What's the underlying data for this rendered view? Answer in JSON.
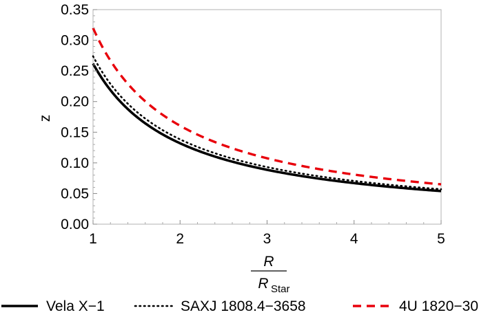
{
  "chart_data": {
    "type": "line",
    "xlabel": {
      "numerator": "R",
      "denominator_main": "R",
      "denominator_sub": "Star"
    },
    "ylabel": "z",
    "xlim": [
      1,
      5
    ],
    "ylim": [
      0,
      0.35
    ],
    "xticks": [
      "1",
      "2",
      "3",
      "4",
      "5"
    ],
    "yticks": [
      "0.00",
      "0.05",
      "0.10",
      "0.15",
      "0.20",
      "0.25",
      "0.30",
      "0.35"
    ],
    "grid": false,
    "legend_position": "bottom",
    "series": [
      {
        "name": "Vela X−1",
        "style": "solid",
        "color": "#000000",
        "x": [
          1.0,
          1.5,
          2.0,
          2.5,
          3.0,
          3.5,
          4.0,
          4.5,
          5.0
        ],
        "y": [
          0.262,
          0.172,
          0.128,
          0.101,
          0.085,
          0.073,
          0.065,
          0.059,
          0.054
        ]
      },
      {
        "name": "SAXJ 1808.4−3658",
        "style": "dotted",
        "color": "#000000",
        "x": [
          1.0,
          1.5,
          2.0,
          2.5,
          3.0,
          3.5,
          4.0,
          4.5,
          5.0
        ],
        "y": [
          0.274,
          0.18,
          0.135,
          0.107,
          0.089,
          0.077,
          0.068,
          0.062,
          0.057
        ]
      },
      {
        "name": "4U 1820−30",
        "style": "dashed",
        "color": "#e8000b",
        "x": [
          1.0,
          1.5,
          2.0,
          2.5,
          3.0,
          3.5,
          4.0,
          4.5,
          5.0
        ],
        "y": [
          0.32,
          0.21,
          0.156,
          0.125,
          0.104,
          0.09,
          0.079,
          0.071,
          0.065
        ]
      }
    ]
  }
}
